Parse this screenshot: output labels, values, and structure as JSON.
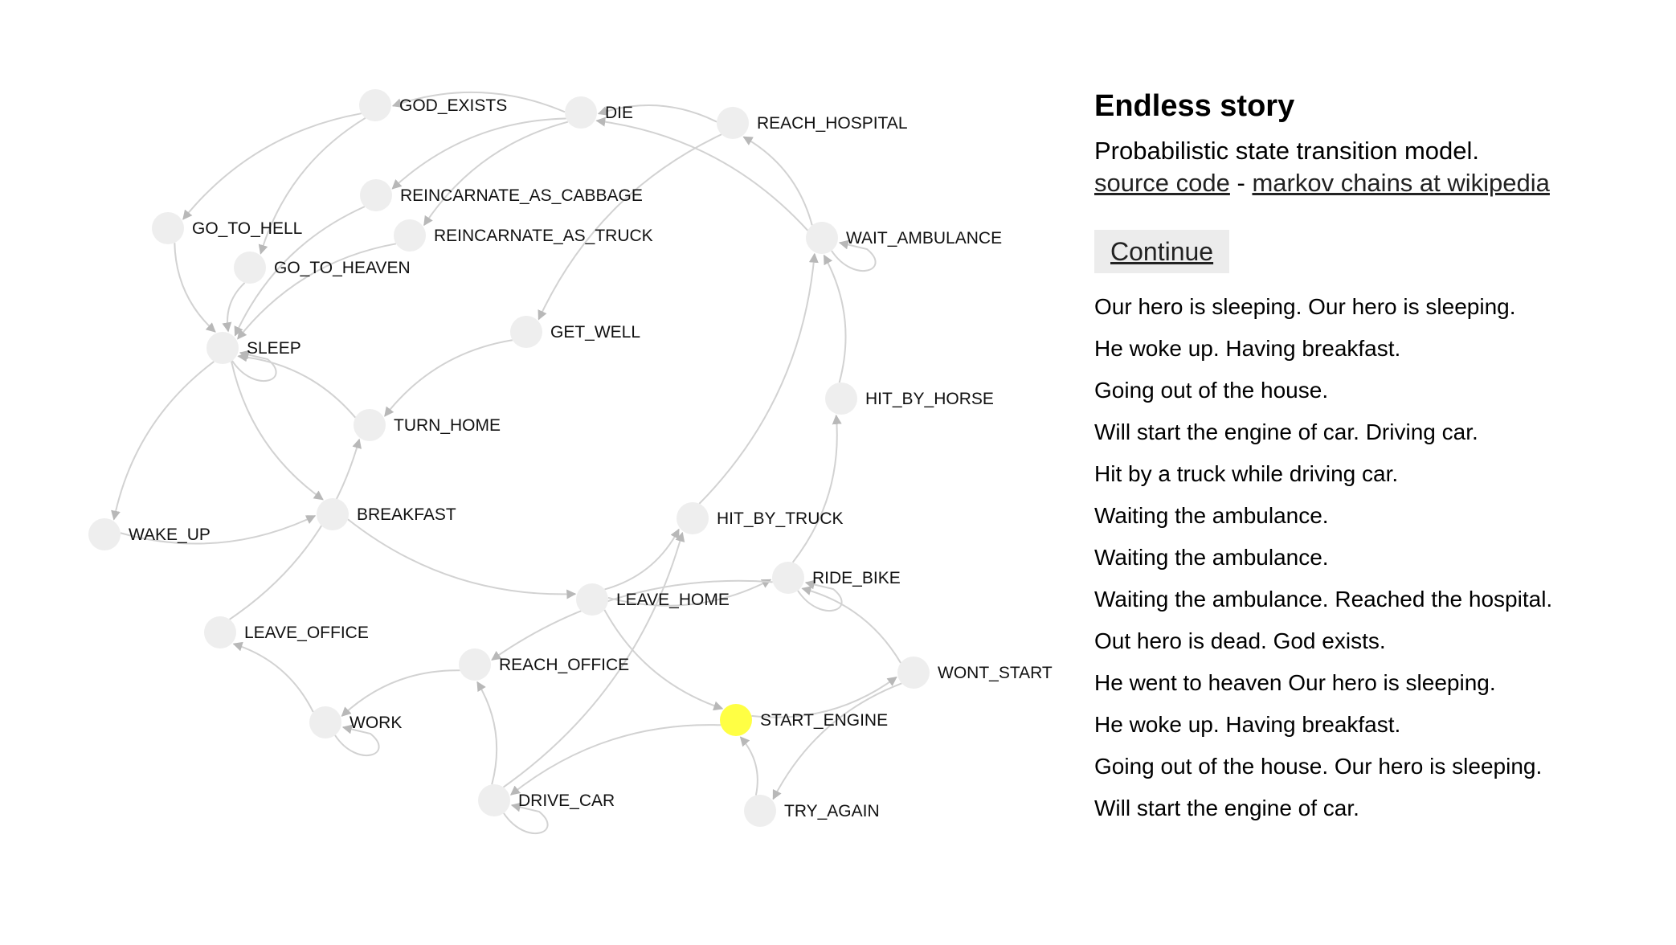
{
  "panel": {
    "title": "Endless story",
    "subtitle": "Probabilistic state transition model.",
    "link_source": "source code",
    "link_sep": " - ",
    "link_wiki": "markov chains at wikipedia",
    "continue_label": "Continue"
  },
  "story": [
    "Our hero is sleeping. Our hero is sleeping.",
    "He woke up. Having breakfast.",
    "Going out of the house.",
    "Will start the engine of car. Driving car.",
    "Hit by a truck while driving car.",
    "Waiting the ambulance.",
    "Waiting the ambulance.",
    "Waiting the ambulance. Reached the hospital.",
    "Out hero is dead. God exists.",
    "He went to heaven Our hero is sleeping.",
    "He woke up. Having breakfast.",
    "Going out of the house. Our hero is sleeping.",
    "Will start the engine of car."
  ],
  "colors": {
    "node": "#eeeeee",
    "active_node": "#ffff44",
    "edge": "#d2d2d2"
  },
  "graph": {
    "active": "START_ENGINE",
    "nodes": [
      "GOD_EXISTS",
      "DIE",
      "REACH_HOSPITAL",
      "REINCARNATE_AS_CABBAGE",
      "GO_TO_HELL",
      "REINCARNATE_AS_TRUCK",
      "GO_TO_HEAVEN",
      "WAIT_AMBULANCE",
      "SLEEP",
      "GET_WELL",
      "HIT_BY_HORSE",
      "TURN_HOME",
      "BREAKFAST",
      "WAKE_UP",
      "HIT_BY_TRUCK",
      "RIDE_BIKE",
      "LEAVE_HOME",
      "LEAVE_OFFICE",
      "WONT_START",
      "REACH_OFFICE",
      "START_ENGINE",
      "WORK",
      "DRIVE_CAR",
      "TRY_AGAIN"
    ],
    "edges": [
      [
        "DIE",
        "GOD_EXISTS"
      ],
      [
        "GOD_EXISTS",
        "GO_TO_HELL"
      ],
      [
        "GOD_EXISTS",
        "GO_TO_HEAVEN"
      ],
      [
        "DIE",
        "REINCARNATE_AS_CABBAGE"
      ],
      [
        "DIE",
        "REINCARNATE_AS_TRUCK"
      ],
      [
        "REACH_HOSPITAL",
        "DIE"
      ],
      [
        "WAIT_AMBULANCE",
        "DIE"
      ],
      [
        "WAIT_AMBULANCE",
        "REACH_HOSPITAL"
      ],
      [
        "REACH_HOSPITAL",
        "GET_WELL"
      ],
      [
        "GO_TO_HELL",
        "SLEEP"
      ],
      [
        "GO_TO_HEAVEN",
        "SLEEP"
      ],
      [
        "REINCARNATE_AS_CABBAGE",
        "SLEEP"
      ],
      [
        "REINCARNATE_AS_TRUCK",
        "SLEEP"
      ],
      [
        "GET_WELL",
        "TURN_HOME"
      ],
      [
        "TURN_HOME",
        "SLEEP"
      ],
      [
        "SLEEP",
        "WAKE_UP"
      ],
      [
        "WAKE_UP",
        "BREAKFAST"
      ],
      [
        "SLEEP",
        "BREAKFAST"
      ],
      [
        "BREAKFAST",
        "LEAVE_HOME"
      ],
      [
        "LEAVE_HOME",
        "HIT_BY_TRUCK"
      ],
      [
        "LEAVE_HOME",
        "RIDE_BIKE"
      ],
      [
        "LEAVE_HOME",
        "START_ENGINE"
      ],
      [
        "RIDE_BIKE",
        "HIT_BY_HORSE"
      ],
      [
        "HIT_BY_HORSE",
        "WAIT_AMBULANCE"
      ],
      [
        "HIT_BY_TRUCK",
        "WAIT_AMBULANCE"
      ],
      [
        "RIDE_BIKE",
        "REACH_OFFICE"
      ],
      [
        "WONT_START",
        "RIDE_BIKE"
      ],
      [
        "START_ENGINE",
        "WONT_START"
      ],
      [
        "WONT_START",
        "TRY_AGAIN"
      ],
      [
        "TRY_AGAIN",
        "START_ENGINE"
      ],
      [
        "START_ENGINE",
        "DRIVE_CAR"
      ],
      [
        "DRIVE_CAR",
        "REACH_OFFICE"
      ],
      [
        "DRIVE_CAR",
        "HIT_BY_TRUCK"
      ],
      [
        "REACH_OFFICE",
        "WORK"
      ],
      [
        "WORK",
        "LEAVE_OFFICE"
      ],
      [
        "LEAVE_OFFICE",
        "TURN_HOME"
      ]
    ],
    "self_loops": [
      "SLEEP",
      "WAIT_AMBULANCE",
      "RIDE_BIKE",
      "WORK",
      "DRIVE_CAR"
    ]
  }
}
